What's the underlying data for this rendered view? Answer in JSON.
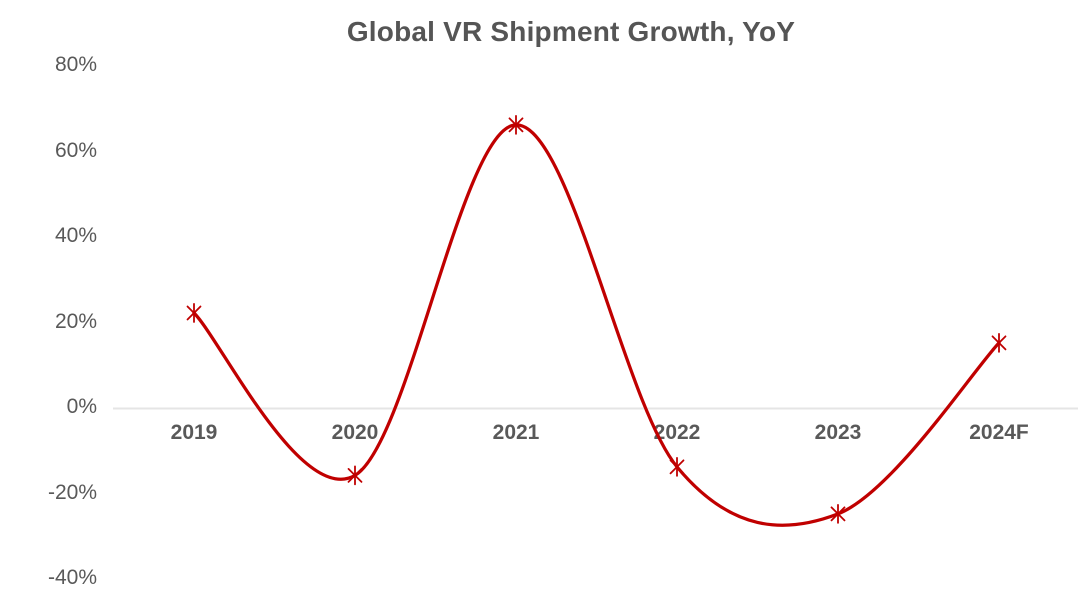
{
  "title": "Global VR Shipment Growth, YoY",
  "chart_data": {
    "type": "line",
    "title": "Global VR Shipment Growth, YoY",
    "categories": [
      "2019",
      "2020",
      "2021",
      "2022",
      "2023",
      "2024F"
    ],
    "series": [
      {
        "name": "Global VR shipment growth YoY",
        "values": [
          22,
          -16,
          66,
          -14,
          -25,
          15
        ]
      }
    ],
    "unit": "%",
    "ylim": [
      -40,
      80
    ],
    "ytick_step": 20,
    "ytick_labels": [
      "80%",
      "60%",
      "40%",
      "20%",
      "0%",
      "-20%",
      "-40%"
    ],
    "xlabel": "",
    "ylabel": "",
    "legend": "none",
    "grid": "zero-line-only",
    "smoothed": true,
    "marker": "asterisk",
    "line_color": "#C00000",
    "zero_line_color": "#E5E5E5",
    "text_color": "#595959",
    "title_color": "#555555",
    "background": "#FFFFFF"
  }
}
